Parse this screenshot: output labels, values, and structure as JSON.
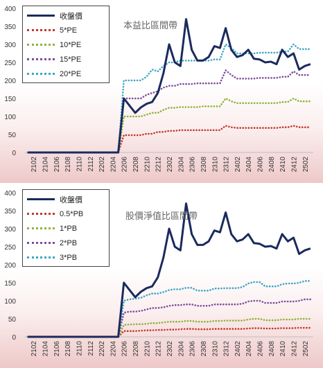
{
  "chart_data": [
    {
      "type": "line",
      "title": "本益比區間帶",
      "ylim": [
        0,
        400
      ],
      "yticks": [
        0,
        50,
        100,
        150,
        200,
        250,
        300,
        350,
        400
      ],
      "x": [
        "2101",
        "2102",
        "2103",
        "2104",
        "2105",
        "2106",
        "2107",
        "2108",
        "2109",
        "2110",
        "2111",
        "2112",
        "2201",
        "2202",
        "2203",
        "2204",
        "2205",
        "2206",
        "2207",
        "2208",
        "2209",
        "2210",
        "2211",
        "2212",
        "2301",
        "2302",
        "2303",
        "2304",
        "2305",
        "2306",
        "2307",
        "2308",
        "2309",
        "2310",
        "2311",
        "2312",
        "2401",
        "2402",
        "2403",
        "2404",
        "2405",
        "2406",
        "2407",
        "2408",
        "2409",
        "2410",
        "2411",
        "2412",
        "2501",
        "2502",
        "2503"
      ],
      "xtick_labels": [
        "2102",
        "2104",
        "2106",
        "2108",
        "2110",
        "2112",
        "2202",
        "2204",
        "2206",
        "2208",
        "2210",
        "2212",
        "2302",
        "2304",
        "2306",
        "2308",
        "2310",
        "2312",
        "2402",
        "2404",
        "2406",
        "2408",
        "2410",
        "2412",
        "2502"
      ],
      "grid": false,
      "legend_position": "top-left",
      "series": [
        {
          "name": "收盤價",
          "color": "#1b2a5e",
          "style": "solid",
          "values": [
            0,
            0,
            0,
            0,
            0,
            0,
            0,
            0,
            0,
            0,
            0,
            0,
            0,
            0,
            0,
            0,
            0,
            150,
            130,
            110,
            125,
            135,
            140,
            165,
            220,
            300,
            250,
            240,
            370,
            285,
            255,
            255,
            265,
            295,
            290,
            345,
            285,
            265,
            270,
            285,
            260,
            258,
            250,
            252,
            245,
            285,
            265,
            275,
            230,
            240,
            245
          ]
        },
        {
          "name": "5*PE",
          "color": "#c0392b",
          "style": "dotted",
          "values": [
            0,
            0,
            0,
            0,
            0,
            0,
            0,
            0,
            0,
            0,
            0,
            0,
            0,
            0,
            0,
            0,
            0,
            48,
            48,
            48,
            48,
            52,
            52,
            57,
            57,
            60,
            60,
            62,
            62,
            62,
            62,
            62,
            62,
            62,
            62,
            74,
            70,
            68,
            68,
            68,
            68,
            68,
            68,
            68,
            68,
            70,
            70,
            74,
            70,
            70,
            70
          ]
        },
        {
          "name": "10*PE",
          "color": "#8db43b",
          "style": "dotted",
          "values": [
            0,
            0,
            0,
            0,
            0,
            0,
            0,
            0,
            0,
            0,
            0,
            0,
            0,
            0,
            0,
            0,
            0,
            100,
            100,
            100,
            100,
            105,
            110,
            110,
            118,
            124,
            124,
            126,
            126,
            126,
            126,
            128,
            128,
            128,
            128,
            150,
            142,
            137,
            137,
            137,
            137,
            137,
            137,
            137,
            137,
            140,
            140,
            150,
            142,
            142,
            142
          ]
        },
        {
          "name": "15*PE",
          "color": "#7d4e9e",
          "style": "dotted",
          "values": [
            0,
            0,
            0,
            0,
            0,
            0,
            0,
            0,
            0,
            0,
            0,
            0,
            0,
            0,
            0,
            0,
            0,
            150,
            150,
            150,
            150,
            160,
            165,
            170,
            180,
            185,
            185,
            190,
            190,
            190,
            192,
            192,
            192,
            192,
            192,
            228,
            215,
            205,
            205,
            205,
            205,
            207,
            207,
            207,
            207,
            210,
            210,
            225,
            215,
            215,
            215
          ]
        },
        {
          "name": "20*PE",
          "color": "#3aa6c4",
          "style": "dotted",
          "values": [
            0,
            0,
            0,
            0,
            0,
            0,
            0,
            0,
            0,
            0,
            0,
            0,
            0,
            0,
            0,
            0,
            0,
            200,
            200,
            200,
            200,
            210,
            230,
            225,
            240,
            250,
            250,
            255,
            255,
            255,
            255,
            255,
            255,
            258,
            258,
            300,
            290,
            275,
            275,
            275,
            275,
            277,
            277,
            277,
            277,
            280,
            280,
            300,
            287,
            287,
            287
          ]
        }
      ]
    },
    {
      "type": "line",
      "title": "股價淨值比區間帶",
      "ylim": [
        0,
        400
      ],
      "yticks": [
        0,
        50,
        100,
        150,
        200,
        250,
        300,
        350,
        400
      ],
      "x": [
        "2101",
        "2102",
        "2103",
        "2104",
        "2105",
        "2106",
        "2107",
        "2108",
        "2109",
        "2110",
        "2111",
        "2112",
        "2201",
        "2202",
        "2203",
        "2204",
        "2205",
        "2206",
        "2207",
        "2208",
        "2209",
        "2210",
        "2211",
        "2212",
        "2301",
        "2302",
        "2303",
        "2304",
        "2305",
        "2306",
        "2307",
        "2308",
        "2309",
        "2310",
        "2311",
        "2312",
        "2401",
        "2402",
        "2403",
        "2404",
        "2405",
        "2406",
        "2407",
        "2408",
        "2409",
        "2410",
        "2411",
        "2412",
        "2501",
        "2502",
        "2503"
      ],
      "xtick_labels": [
        "2102",
        "2104",
        "2106",
        "2108",
        "2110",
        "2112",
        "2202",
        "2204",
        "2206",
        "2208",
        "2210",
        "2212",
        "2302",
        "2304",
        "2306",
        "2308",
        "2310",
        "2312",
        "2402",
        "2404",
        "2406",
        "2408",
        "2410",
        "2412",
        "2502"
      ],
      "grid": false,
      "legend_position": "top-left",
      "series": [
        {
          "name": "收盤價",
          "color": "#1b2a5e",
          "style": "solid",
          "values": [
            0,
            0,
            0,
            0,
            0,
            0,
            0,
            0,
            0,
            0,
            0,
            0,
            0,
            0,
            0,
            0,
            0,
            150,
            130,
            110,
            125,
            135,
            140,
            165,
            220,
            300,
            250,
            240,
            370,
            285,
            255,
            255,
            265,
            295,
            290,
            345,
            285,
            265,
            270,
            285,
            260,
            258,
            250,
            252,
            245,
            285,
            265,
            275,
            230,
            240,
            245
          ]
        },
        {
          "name": "0.5*PB",
          "color": "#c0392b",
          "style": "dotted",
          "values": [
            0,
            0,
            0,
            0,
            0,
            0,
            0,
            0,
            0,
            0,
            0,
            0,
            0,
            0,
            0,
            0,
            0,
            16,
            16,
            16,
            17,
            18,
            18,
            19,
            19,
            20,
            20,
            21,
            22,
            22,
            21,
            21,
            21,
            22,
            22,
            22,
            22,
            22,
            22,
            23,
            24,
            24,
            23,
            23,
            23,
            24,
            24,
            24,
            25,
            25,
            25
          ]
        },
        {
          "name": "1*PB",
          "color": "#8db43b",
          "style": "dotted",
          "values": [
            0,
            0,
            0,
            0,
            0,
            0,
            0,
            0,
            0,
            0,
            0,
            0,
            0,
            0,
            0,
            0,
            0,
            33,
            34,
            35,
            35,
            36,
            38,
            38,
            40,
            42,
            42,
            42,
            44,
            44,
            42,
            42,
            42,
            44,
            44,
            45,
            45,
            45,
            45,
            48,
            50,
            50,
            46,
            46,
            46,
            48,
            48,
            48,
            50,
            50,
            50
          ]
        },
        {
          "name": "2*PB",
          "color": "#7d4e9e",
          "style": "dotted",
          "values": [
            0,
            0,
            0,
            0,
            0,
            0,
            0,
            0,
            0,
            0,
            0,
            0,
            0,
            0,
            0,
            0,
            0,
            67,
            70,
            70,
            72,
            76,
            80,
            80,
            82,
            86,
            88,
            88,
            90,
            90,
            86,
            86,
            86,
            90,
            90,
            90,
            90,
            90,
            92,
            98,
            100,
            100,
            94,
            94,
            94,
            98,
            98,
            98,
            100,
            104,
            104
          ]
        },
        {
          "name": "3*PB",
          "color": "#3aa6c4",
          "style": "dotted",
          "values": [
            0,
            0,
            0,
            0,
            0,
            0,
            0,
            0,
            0,
            0,
            0,
            0,
            0,
            0,
            0,
            0,
            0,
            100,
            104,
            106,
            108,
            115,
            120,
            120,
            124,
            130,
            132,
            132,
            136,
            136,
            128,
            128,
            128,
            134,
            134,
            135,
            135,
            135,
            138,
            148,
            152,
            152,
            140,
            140,
            140,
            146,
            148,
            148,
            150,
            155,
            155
          ]
        }
      ]
    }
  ]
}
